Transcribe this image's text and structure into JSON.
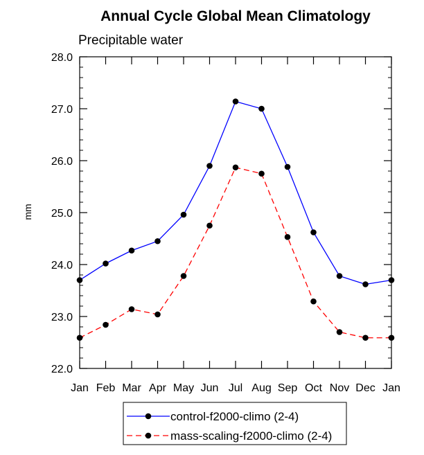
{
  "chart_data": {
    "type": "line",
    "title": "Annual Cycle Global Mean Climatology",
    "subtitle": "Precipitable water",
    "xlabel": "",
    "ylabel": "mm",
    "categories": [
      "Jan",
      "Feb",
      "Mar",
      "Apr",
      "May",
      "Jun",
      "Jul",
      "Aug",
      "Sep",
      "Oct",
      "Nov",
      "Dec",
      "Jan"
    ],
    "ylim": [
      22.0,
      28.0
    ],
    "yticks": [
      "22.0",
      "23.0",
      "24.0",
      "25.0",
      "26.0",
      "27.0",
      "28.0"
    ],
    "grid": false,
    "legend_position": "bottom",
    "series": [
      {
        "name": "control-f2000-climo (2-4)",
        "color": "#0000ff",
        "dash": "solid",
        "values": [
          23.7,
          24.02,
          24.27,
          24.45,
          24.96,
          25.9,
          27.14,
          27.0,
          25.88,
          24.62,
          23.78,
          23.62,
          23.7
        ]
      },
      {
        "name": "mass-scaling-f2000-climo (2-4)",
        "color": "#ff0000",
        "dash": "dashed",
        "values": [
          22.59,
          22.84,
          23.14,
          23.04,
          23.78,
          24.75,
          25.87,
          25.75,
          24.53,
          23.29,
          22.7,
          22.59,
          22.59
        ]
      }
    ]
  }
}
